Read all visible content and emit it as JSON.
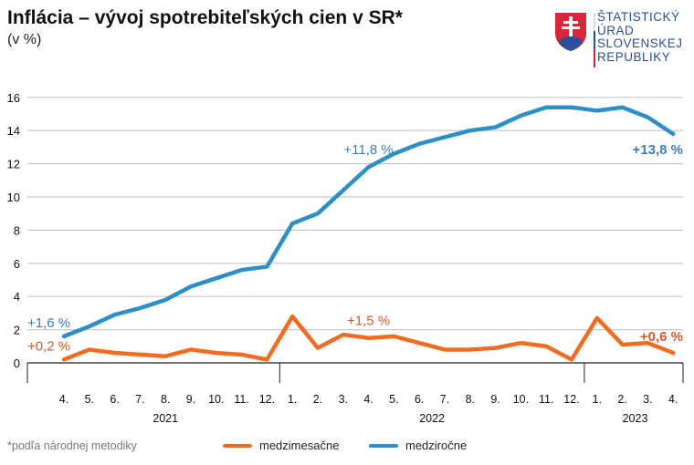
{
  "header": {
    "title": "Inflácia – vývoj spotrebiteľských cien v SR*",
    "subtitle": "(v %)"
  },
  "logo": {
    "lines": [
      "ŠTATISTICKÝ",
      "ÚRAD",
      "SLOVENSKEJ",
      "REPUBLIKY"
    ]
  },
  "footnote": "*podľa národnej metodiky",
  "colors": {
    "mom": "#f26b21",
    "yoy": "#2e8fc8",
    "mom_label": "#d4592a",
    "yoy_label": "#3a7fb5",
    "grid": "#c8c8c8"
  },
  "chart_data": {
    "type": "line",
    "title": "Inflácia – vývoj spotrebiteľských cien v SR*",
    "ylabel": "v %",
    "ylim": [
      0,
      16
    ],
    "yticks": [
      0,
      2,
      4,
      6,
      8,
      10,
      12,
      14,
      16
    ],
    "grid": true,
    "categories": [
      "4.",
      "5.",
      "6.",
      "7.",
      "8.",
      "9.",
      "10.",
      "11.",
      "12.",
      "1.",
      "2.",
      "3.",
      "4.",
      "5.",
      "6.",
      "7.",
      "8.",
      "9.",
      "10.",
      "11.",
      "12.",
      "1.",
      "2.",
      "3.",
      "4."
    ],
    "years": [
      {
        "label": "2021",
        "start": 0,
        "end": 8
      },
      {
        "label": "2022",
        "start": 9,
        "end": 20
      },
      {
        "label": "2023",
        "start": 21,
        "end": 24
      }
    ],
    "legend_position": "bottom",
    "series": [
      {
        "name": "medzimesačne",
        "key": "mom",
        "values": [
          0.2,
          0.8,
          0.6,
          0.5,
          0.4,
          0.8,
          0.6,
          0.5,
          0.2,
          2.8,
          0.9,
          1.7,
          1.5,
          1.6,
          1.2,
          0.8,
          0.8,
          0.9,
          1.2,
          1.0,
          0.2,
          2.7,
          1.1,
          1.2,
          0.6
        ]
      },
      {
        "name": "medziročne",
        "key": "yoy",
        "values": [
          1.6,
          2.2,
          2.9,
          3.3,
          3.8,
          4.6,
          5.1,
          5.6,
          5.8,
          8.4,
          9.0,
          10.4,
          11.8,
          12.6,
          13.2,
          13.6,
          14.0,
          14.2,
          14.9,
          15.4,
          15.4,
          15.2,
          15.4,
          14.8,
          13.8
        ]
      }
    ],
    "annotations": [
      {
        "series": "yoy",
        "index": 0,
        "text": "+1,6 %",
        "bold": false
      },
      {
        "series": "mom",
        "index": 0,
        "text": "+0,2 %",
        "bold": false
      },
      {
        "series": "yoy",
        "index": 12,
        "text": "+11,8 %",
        "bold": false
      },
      {
        "series": "mom",
        "index": 12,
        "text": "+1,5 %",
        "bold": false
      },
      {
        "series": "yoy",
        "index": 24,
        "text": "+13,8 %",
        "bold": true
      },
      {
        "series": "mom",
        "index": 24,
        "text": "+0,6 %",
        "bold": true
      }
    ]
  }
}
